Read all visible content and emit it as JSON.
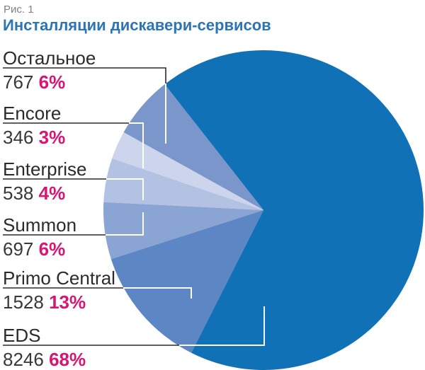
{
  "figure": {
    "caption": "Рис. 1",
    "title": "Инсталляции дискавери-сервисов",
    "title_color": "#2d74b4",
    "caption_color": "#7e8184"
  },
  "chart_data": {
    "type": "pie",
    "title": "Инсталляции дискавери-сервисов",
    "legend_position": "left-column-with-callout-lines",
    "direction": "counterclockwise",
    "start_angle_deg": 128.1,
    "accent_percent_color": "#d81572",
    "callout_line_colors": {
      "outside_pie": "#2b2a2d",
      "inside_pie": "#ffffff"
    },
    "slices": [
      {
        "label": "Остальное",
        "value": 767,
        "percent": "6%",
        "color": "#7b96cb"
      },
      {
        "label": "Encore",
        "value": 346,
        "percent": "3%",
        "color": "#ccd5ec"
      },
      {
        "label": "Enterprise",
        "value": 538,
        "percent": "4%",
        "color": "#b3c1e3"
      },
      {
        "label": "Summon",
        "value": 697,
        "percent": "6%",
        "color": "#8aa4d3"
      },
      {
        "label": "Primo Central",
        "value": 1528,
        "percent": "13%",
        "color": "#5d86c5"
      },
      {
        "label": "EDS",
        "value": 8246,
        "percent": "68%",
        "color": "#1171b7"
      }
    ]
  }
}
